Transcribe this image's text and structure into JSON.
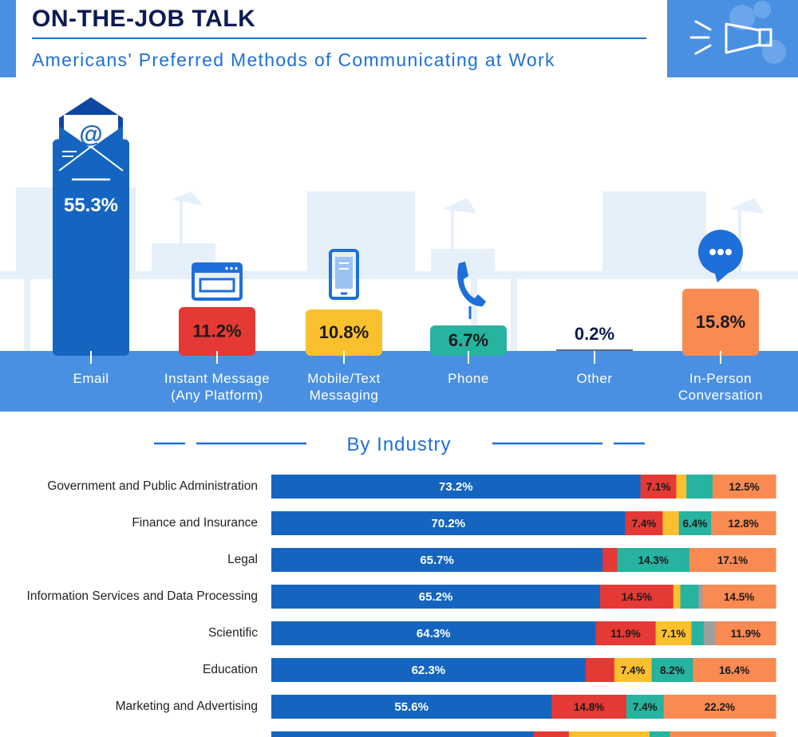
{
  "header": {
    "title": "ON-THE-JOB TALK",
    "subtitle": "Americans' Preferred Methods of Communicating at Work"
  },
  "section_title": "By Industry",
  "colors": {
    "email": "#1565c0",
    "instant_message": "#e53935",
    "mobile_text": "#fbc02d",
    "phone": "#26b3a0",
    "other": "#9e9e9e",
    "in_person": "#f98a52",
    "band": "#4a90e2",
    "title_text": "#0d1b52",
    "accent": "#1e6fd9",
    "faint": "#e6f0fb"
  },
  "chart_data": [
    {
      "type": "bar",
      "categories": [
        "Email",
        "Instant Message\n(Any Platform)",
        "Mobile/Text\nMessaging",
        "Phone",
        "Other",
        "In-Person\nConversation"
      ],
      "values": [
        55.3,
        11.2,
        10.8,
        6.7,
        0.2,
        15.8
      ],
      "value_labels": [
        "55.3%",
        "11.2%",
        "10.8%",
        "6.7%",
        "0.2%",
        "15.8%"
      ],
      "series_colors": [
        "#1565c0",
        "#e53935",
        "#fbc02d",
        "#26b3a0",
        "#9e9e9e",
        "#f98a52"
      ],
      "icons": [
        "envelope-at-icon",
        "browser-window-icon",
        "mobile-phone-icon",
        "telephone-handset-icon",
        "",
        "speech-bubble-icon"
      ],
      "title": "",
      "xlabel": "",
      "ylabel": ""
    },
    {
      "type": "bar",
      "stacked": true,
      "orientation": "horizontal",
      "title": "By Industry",
      "categories": [
        "Government and Public Administration",
        "Finance and Insurance",
        "Legal",
        "Information Services and Data Processing",
        "Scientific",
        "Education",
        "Marketing and Advertising",
        ""
      ],
      "series": [
        {
          "values": [
            73.2,
            70.2,
            65.7,
            65.2,
            64.3,
            62.3,
            55.6,
            52.0
          ],
          "labels": [
            "73.2%",
            "70.2%",
            "65.7%",
            "65.2%",
            "64.3%",
            "62.3%",
            "55.6%",
            ""
          ],
          "color": "#1565c0"
        },
        {
          "values": [
            7.1,
            7.4,
            2.9,
            14.5,
            11.9,
            5.7,
            14.8,
            7.0
          ],
          "labels": [
            "7.1%",
            "7.4%",
            "",
            "14.5%",
            "11.9%",
            "",
            "14.8%",
            ""
          ],
          "color": "#e53935"
        },
        {
          "values": [
            2.0,
            3.2,
            0.0,
            1.4,
            7.1,
            7.4,
            0.0,
            16.0
          ],
          "labels": [
            "",
            "",
            "",
            "",
            "7.1%",
            "7.4%",
            "",
            ""
          ],
          "color": "#fbc02d"
        },
        {
          "values": [
            5.2,
            6.4,
            14.3,
            3.6,
            2.4,
            8.2,
            7.4,
            4.0
          ],
          "labels": [
            "",
            "6.4%",
            "14.3%",
            "",
            "",
            "8.2%",
            "7.4%",
            ""
          ],
          "color": "#26b3a0"
        },
        {
          "values": [
            0.0,
            0.0,
            0.0,
            0.8,
            2.4,
            0.0,
            0.0,
            0.0
          ],
          "labels": [
            "",
            "",
            "",
            "",
            "",
            "",
            "",
            ""
          ],
          "color": "#9e9e9e"
        },
        {
          "values": [
            12.5,
            12.8,
            17.1,
            14.5,
            11.9,
            16.4,
            22.2,
            21.0
          ],
          "labels": [
            "12.5%",
            "12.8%",
            "17.1%",
            "14.5%",
            "11.9%",
            "16.4%",
            "22.2%",
            ""
          ],
          "color": "#f98a52"
        }
      ],
      "xlim": [
        0,
        100
      ]
    }
  ]
}
